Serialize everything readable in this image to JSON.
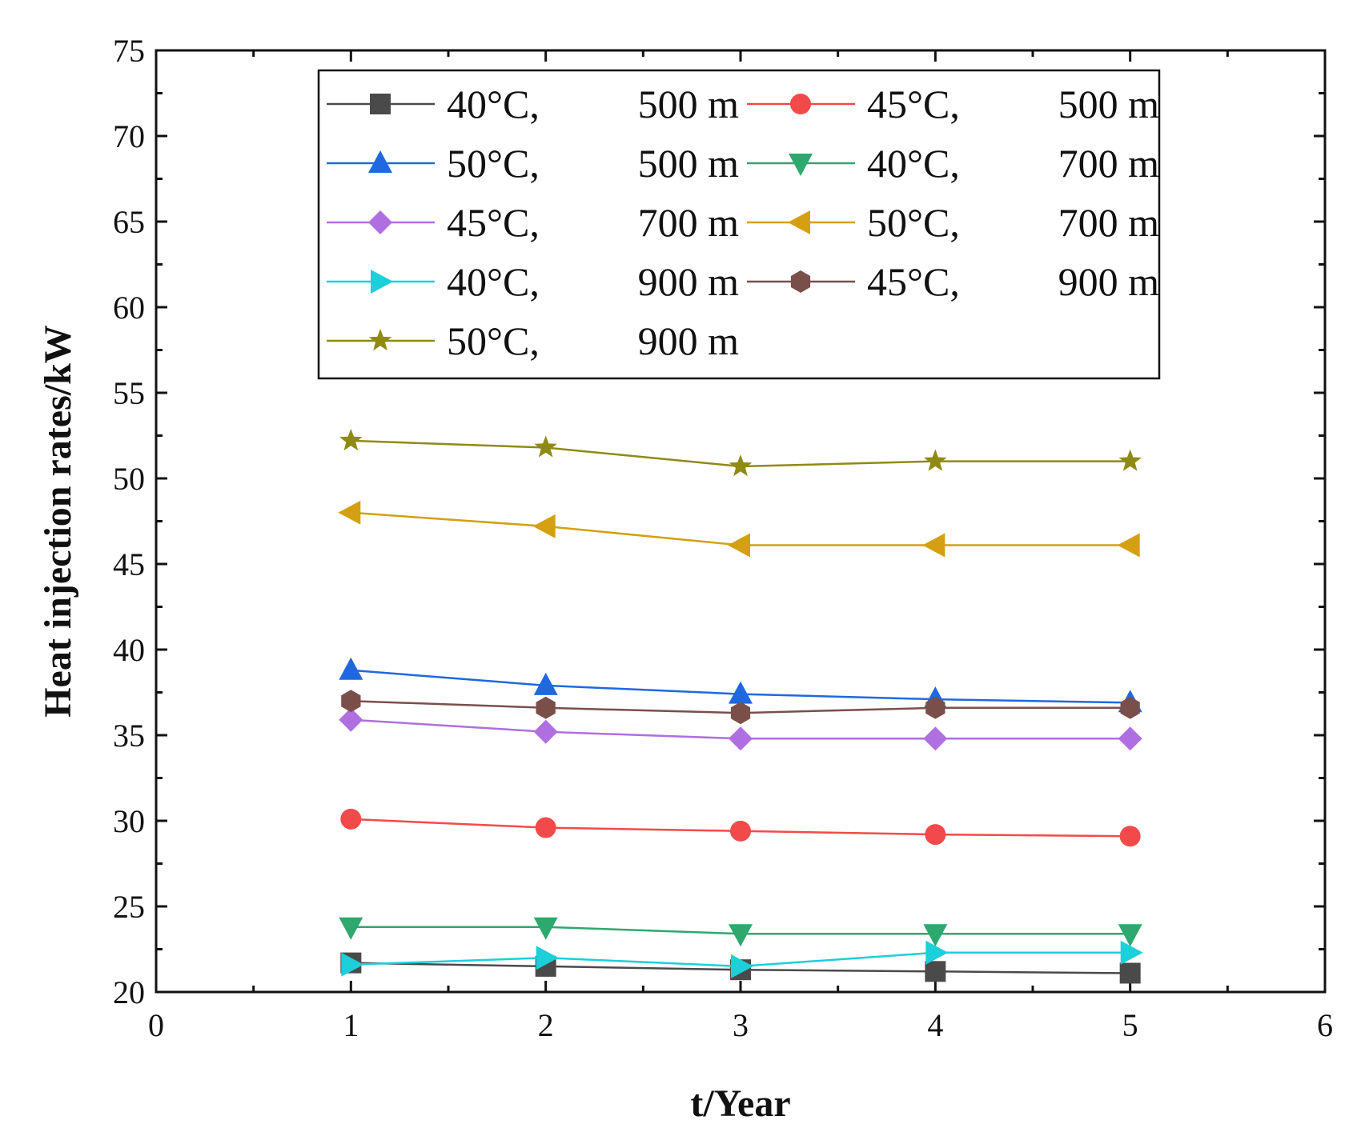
{
  "chart_data": {
    "type": "line",
    "title": "",
    "xlabel": "t/Year",
    "ylabel": "Heat injection rates/kW",
    "xlim": [
      0,
      6
    ],
    "ylim": [
      20,
      75
    ],
    "xticks": [
      0,
      1,
      2,
      3,
      4,
      5,
      6
    ],
    "yticks": [
      20,
      25,
      30,
      35,
      40,
      45,
      50,
      55,
      60,
      65,
      70,
      75
    ],
    "legend_position": "top-center",
    "x": [
      1,
      2,
      3,
      4,
      5
    ],
    "series": [
      {
        "temp": "40°C,",
        "depth": "500 m",
        "color": "#4a4a4a",
        "marker": "square",
        "values": [
          21.7,
          21.5,
          21.3,
          21.2,
          21.1
        ]
      },
      {
        "temp": "45°C,",
        "depth": "500 m",
        "color": "#f24a4a",
        "marker": "circle",
        "values": [
          30.1,
          29.6,
          29.4,
          29.2,
          29.1
        ]
      },
      {
        "temp": "50°C,",
        "depth": "500 m",
        "color": "#1f68e0",
        "marker": "triangle-up",
        "values": [
          38.8,
          37.9,
          37.4,
          37.1,
          36.9
        ]
      },
      {
        "temp": "40°C,",
        "depth": "700 m",
        "color": "#2ea86e",
        "marker": "triangle-down",
        "values": [
          23.8,
          23.8,
          23.4,
          23.4,
          23.4
        ]
      },
      {
        "temp": "45°C,",
        "depth": "700 m",
        "color": "#b06fe0",
        "marker": "diamond",
        "values": [
          35.9,
          35.2,
          34.8,
          34.8,
          34.8
        ]
      },
      {
        "temp": "50°C,",
        "depth": "700 m",
        "color": "#d4a011",
        "marker": "triangle-left",
        "values": [
          48.0,
          47.2,
          46.1,
          46.1,
          46.1
        ]
      },
      {
        "temp": "40°C,",
        "depth": "900 m",
        "color": "#1ccfd9",
        "marker": "triangle-right",
        "values": [
          21.6,
          22.0,
          21.5,
          22.3,
          22.3
        ]
      },
      {
        "temp": "45°C,",
        "depth": "900 m",
        "color": "#7a4f4a",
        "marker": "hexagon",
        "values": [
          37.0,
          36.6,
          36.3,
          36.6,
          36.6
        ]
      },
      {
        "temp": "50°C,",
        "depth": "900 m",
        "color": "#8f8a14",
        "marker": "star",
        "values": [
          52.2,
          51.8,
          50.7,
          51.0,
          51.0
        ]
      }
    ]
  }
}
